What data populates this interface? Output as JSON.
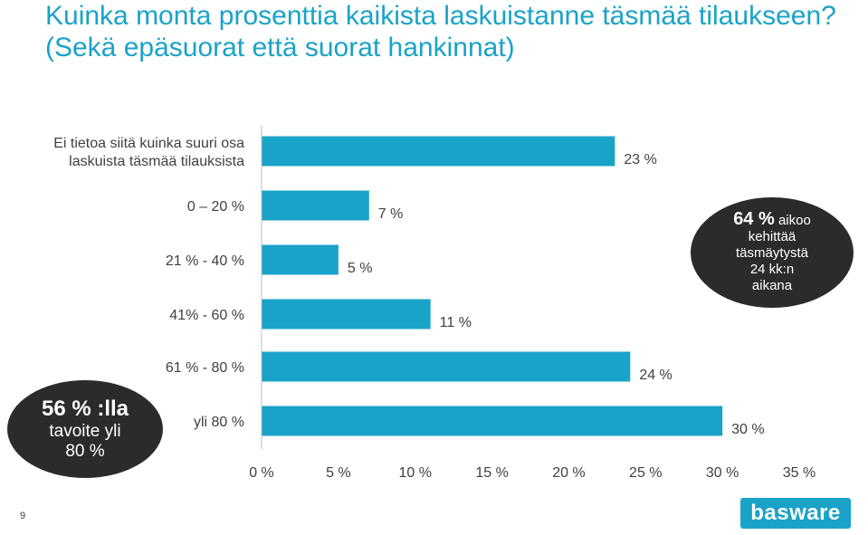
{
  "page": {
    "title": "Kuinka monta prosenttia kaikista laskuistanne täsmää tilaukseen? (Sekä epäsuorat että suorat hankinnat)",
    "slide_number": "9",
    "logo_text": "basware"
  },
  "callouts": {
    "right": {
      "pct": "64 %",
      "text1": "aikoo",
      "text2": "kehittää",
      "text3": "täsmäytystä",
      "text4": "24 kk:n",
      "text5": "aikana"
    },
    "left": {
      "line1": "56 % :lla",
      "line2": "tavoite yli",
      "line3": "80 %"
    }
  },
  "colors": {
    "accent": "#1aa3c8",
    "text": "#404040",
    "callout_bg": "#2b2b2b",
    "axis": "#bfbfbf"
  },
  "chart_data": {
    "type": "bar",
    "orientation": "horizontal",
    "categories": [
      "Ei tietoa siitä kuinka suuri osa laskuista täsmää tilauksista",
      "0 – 20 %",
      "21 % - 40 %",
      "41% - 60  %",
      "61 % - 80 %",
      "yli 80 %"
    ],
    "category_lines": [
      [
        "Ei tietoa siitä kuinka suuri osa",
        "laskuista täsmää tilauksista"
      ],
      [
        "0 – 20 %"
      ],
      [
        "21 % - 40 %"
      ],
      [
        "41% - 60  %"
      ],
      [
        "61 % - 80 %"
      ],
      [
        "yli 80 %"
      ]
    ],
    "values": [
      23,
      7,
      5,
      11,
      24,
      30
    ],
    "value_labels": [
      "23 %",
      "7 %",
      "5 %",
      "11 %",
      "24 %",
      "30 %"
    ],
    "xlim": [
      0,
      35
    ],
    "x_ticks": [
      0,
      5,
      10,
      15,
      20,
      25,
      30,
      35
    ],
    "x_tick_labels": [
      "0 %",
      "5 %",
      "10 %",
      "15 %",
      "20 %",
      "25 %",
      "30 %",
      "35 %"
    ],
    "grid": false,
    "legend": "none"
  }
}
